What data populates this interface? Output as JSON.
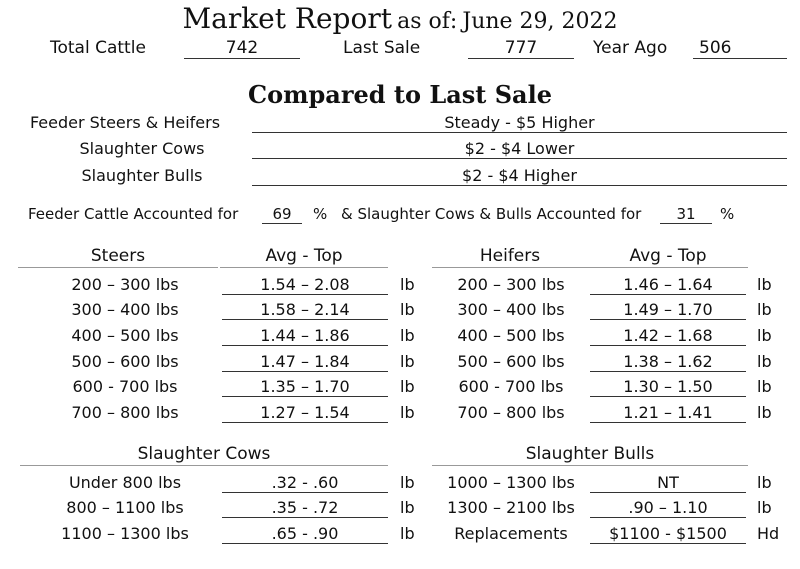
{
  "title": {
    "main": "Market Report",
    "as_of_label": "as of:",
    "date": "June 29, 2022"
  },
  "summary": {
    "total_cattle_label": "Total Cattle",
    "total_cattle": "742",
    "last_sale_label": "Last Sale",
    "last_sale": "777",
    "year_ago_label": "Year Ago",
    "year_ago": "506"
  },
  "compared": {
    "title": "Compared to Last Sale",
    "rows": [
      {
        "label": "Feeder Steers & Heifers",
        "value": "Steady  - $5 Higher"
      },
      {
        "label": "Slaughter Cows",
        "value": "$2 - $4 Lower"
      },
      {
        "label": "Slaughter Bulls",
        "value": "$2 - $4 Higher"
      }
    ]
  },
  "accounted": {
    "feeder_label": "Feeder Cattle Accounted for",
    "feeder_pct": "69",
    "pct_sign": "%",
    "slaughter_label": "& Slaughter Cows & Bulls Accounted for",
    "slaughter_pct": "31"
  },
  "steers": {
    "header": "Steers",
    "col_header": "Avg - Top",
    "rows": [
      {
        "weight": "200 – 300 lbs",
        "price": "1.54 – 2.08",
        "unit": "lb"
      },
      {
        "weight": "300 – 400 lbs",
        "price": "1.58 – 2.14",
        "unit": "lb"
      },
      {
        "weight": "400 – 500 lbs",
        "price": "1.44 – 1.86",
        "unit": "lb"
      },
      {
        "weight": "500 – 600 lbs",
        "price": "1.47 – 1.84",
        "unit": "lb"
      },
      {
        "weight": "600 -  700 lbs",
        "price": "1.35 – 1.70",
        "unit": "lb"
      },
      {
        "weight": "700 – 800 lbs",
        "price": "1.27 – 1.54",
        "unit": "lb"
      }
    ]
  },
  "heifers": {
    "header": "Heifers",
    "col_header": "Avg - Top",
    "rows": [
      {
        "weight": "200 – 300 lbs",
        "price": "1.46 – 1.64",
        "unit": "lb"
      },
      {
        "weight": "300 – 400 lbs",
        "price": "1.49 – 1.70",
        "unit": "lb"
      },
      {
        "weight": "400 – 500 lbs",
        "price": "1.42 – 1.68",
        "unit": "lb"
      },
      {
        "weight": "500 – 600 lbs",
        "price": "1.38 – 1.62",
        "unit": "lb"
      },
      {
        "weight": "600 -  700 lbs",
        "price": "1.30 – 1.50",
        "unit": "lb"
      },
      {
        "weight": "700 – 800 lbs",
        "price": "1.21 – 1.41",
        "unit": "lb"
      }
    ]
  },
  "slaughter_cows": {
    "header": "Slaughter Cows",
    "rows": [
      {
        "weight": "Under 800 lbs",
        "price": ".32 - .60",
        "unit": "lb"
      },
      {
        "weight": "800 – 1100 lbs",
        "price": ".35 - .72",
        "unit": "lb"
      },
      {
        "weight": "1100 – 1300 lbs",
        "price": ".65 - .90",
        "unit": "lb"
      }
    ]
  },
  "slaughter_bulls": {
    "header": "Slaughter Bulls",
    "rows": [
      {
        "weight": "1000 – 1300 lbs",
        "price": "NT",
        "unit": "lb"
      },
      {
        "weight": "1300 – 2100 lbs",
        "price": ".90 – 1.10",
        "unit": "lb"
      },
      {
        "weight": "Replacements",
        "price": "$1100 - $1500",
        "unit": "Hd"
      }
    ]
  }
}
